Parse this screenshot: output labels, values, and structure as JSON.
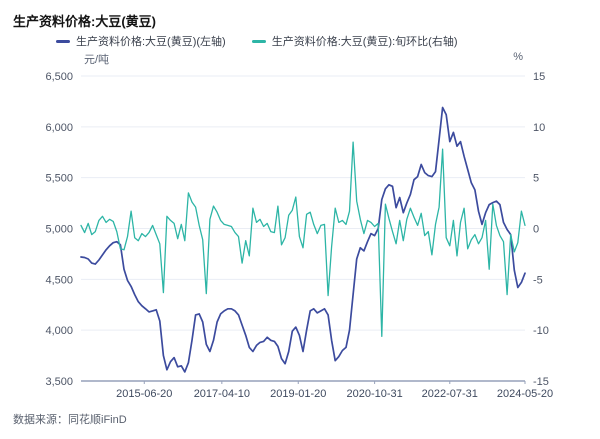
{
  "title": "生产资料价格:大豆(黄豆)",
  "source": "数据来源：同花顺iFinD",
  "chart_data": {
    "type": "line",
    "title": "生产资料价格:大豆(黄豆)",
    "grid": true,
    "legend_position": "top",
    "left_axis": {
      "label": "元/吨",
      "min": 3500,
      "max": 6500,
      "tick_labels": [
        "6,500",
        "6,000",
        "5,500",
        "5,000",
        "4,500",
        "4,000",
        "3,500"
      ]
    },
    "right_axis": {
      "label": "%",
      "min": -15,
      "max": 15,
      "tick_labels": [
        "15",
        "10",
        "5",
        "0",
        "-5",
        "-10",
        "-15"
      ]
    },
    "x_tick_labels": [
      "2015-06-20",
      "2017-04-10",
      "2019-01-20",
      "2020-10-31",
      "2022-07-31",
      "2024-05-20"
    ],
    "x_tick_positions": [
      0.1425,
      0.3172,
      0.4893,
      0.6613,
      0.8306,
      1.0
    ],
    "x": [
      "2014-01",
      "2014-02",
      "2014-03",
      "2014-04",
      "2014-05",
      "2014-06",
      "2014-07",
      "2014-08",
      "2014-09",
      "2014-10",
      "2014-11",
      "2014-12",
      "2015-01",
      "2015-02",
      "2015-03",
      "2015-04",
      "2015-05",
      "2015-06",
      "2015-07",
      "2015-08",
      "2015-09",
      "2015-10",
      "2015-11",
      "2015-12",
      "2016-01",
      "2016-02",
      "2016-03",
      "2016-04",
      "2016-05",
      "2016-06",
      "2016-07",
      "2016-08",
      "2016-09",
      "2016-10",
      "2016-11",
      "2016-12",
      "2017-01",
      "2017-02",
      "2017-03",
      "2017-04",
      "2017-05",
      "2017-06",
      "2017-07",
      "2017-08",
      "2017-09",
      "2017-10",
      "2017-11",
      "2017-12",
      "2018-01",
      "2018-02",
      "2018-03",
      "2018-04",
      "2018-05",
      "2018-06",
      "2018-07",
      "2018-08",
      "2018-09",
      "2018-10",
      "2018-11",
      "2018-12",
      "2019-01",
      "2019-02",
      "2019-03",
      "2019-04",
      "2019-05",
      "2019-06",
      "2019-07",
      "2019-08",
      "2019-09",
      "2019-10",
      "2019-11",
      "2019-12",
      "2020-01",
      "2020-02",
      "2020-03",
      "2020-04",
      "2020-05",
      "2020-06",
      "2020-07",
      "2020-08",
      "2020-09",
      "2020-10",
      "2020-11",
      "2020-12",
      "2021-01",
      "2021-02",
      "2021-03",
      "2021-04",
      "2021-05",
      "2021-06",
      "2021-07",
      "2021-08",
      "2021-09",
      "2021-10",
      "2021-11",
      "2021-12",
      "2022-01",
      "2022-02",
      "2022-03",
      "2022-04",
      "2022-05",
      "2022-06",
      "2022-07",
      "2022-08",
      "2022-09",
      "2022-10",
      "2022-11",
      "2022-12",
      "2023-01",
      "2023-02",
      "2023-03",
      "2023-04",
      "2023-05",
      "2023-06",
      "2023-07",
      "2023-08",
      "2023-09",
      "2023-10",
      "2023-11",
      "2023-12",
      "2024-01",
      "2024-02",
      "2024-03",
      "2024-04",
      "2024-05"
    ],
    "series": [
      {
        "name": "生产资料价格:大豆(黄豆)(左轴)",
        "axis": "left",
        "color": "#3C4B9E",
        "values": [
          4720,
          4715,
          4700,
          4660,
          4650,
          4690,
          4740,
          4790,
          4830,
          4860,
          4870,
          4840,
          4600,
          4490,
          4430,
          4350,
          4280,
          4240,
          4210,
          4180,
          4190,
          4200,
          4090,
          3750,
          3610,
          3690,
          3730,
          3640,
          3650,
          3590,
          3680,
          3900,
          4150,
          4160,
          4080,
          3860,
          3790,
          3900,
          4080,
          4160,
          4190,
          4210,
          4210,
          4190,
          4150,
          4050,
          3950,
          3830,
          3790,
          3850,
          3880,
          3890,
          3930,
          3900,
          3890,
          3840,
          3720,
          3670,
          3790,
          3990,
          4030,
          3950,
          3790,
          4000,
          4190,
          4210,
          4170,
          4190,
          4210,
          4150,
          3900,
          3700,
          3740,
          3800,
          3830,
          4000,
          4350,
          4700,
          4810,
          4780,
          4870,
          4950,
          4930,
          5000,
          5285,
          5390,
          5430,
          5415,
          5205,
          5305,
          5155,
          5250,
          5335,
          5480,
          5510,
          5630,
          5550,
          5520,
          5510,
          5560,
          5875,
          6190,
          6120,
          5855,
          5945,
          5810,
          5855,
          5710,
          5580,
          5450,
          5380,
          5170,
          5040,
          5155,
          5235,
          5255,
          5270,
          5235,
          5060,
          4990,
          4940,
          4590,
          4420,
          4470,
          4560
        ]
      },
      {
        "name": "生产资料价格:大豆(黄豆):旬环比(右轴)",
        "axis": "right",
        "color": "#2DB5A6",
        "values": [
          0.3,
          -0.4,
          0.5,
          -0.6,
          -0.3,
          0.8,
          1.2,
          0.6,
          0.9,
          0.7,
          -0.3,
          -2.0,
          -2.1,
          -0.8,
          1.7,
          -0.9,
          -1.2,
          -0.5,
          -0.8,
          -0.4,
          0.3,
          -0.6,
          -1.5,
          -6.3,
          1.2,
          0.8,
          0.5,
          -1.0,
          0.4,
          -1.2,
          3.5,
          2.6,
          2.1,
          0.3,
          -1.1,
          -6.4,
          0.9,
          2.2,
          1.6,
          0.8,
          0.4,
          0.3,
          0.2,
          -0.4,
          -0.8,
          -3.4,
          -1.2,
          -2.7,
          2.0,
          0.6,
          0.9,
          0.2,
          0.5,
          -0.3,
          -0.4,
          2.2,
          -1.6,
          -0.9,
          1.3,
          1.8,
          3.1,
          -0.8,
          -1.9,
          1.4,
          1.6,
          0.4,
          -0.5,
          0.3,
          0.4,
          -6.6,
          -1.8,
          2.0,
          0.6,
          0.8,
          0.4,
          1.7,
          8.5,
          2.7,
          0.9,
          -0.5,
          0.8,
          0.6,
          0.2,
          0.5,
          -10.6,
          2.4,
          1.0,
          -0.3,
          -1.5,
          0.8,
          -1.2,
          0.9,
          2.0,
          1.1,
          0.3,
          1.5,
          -0.7,
          -0.3,
          -2.6,
          0.4,
          2.1,
          7.8,
          -0.9,
          -1.7,
          0.8,
          -2.7,
          0.6,
          2.0,
          -2.0,
          -1.1,
          -0.6,
          -1.5,
          -0.9,
          0.8,
          -4.0,
          2.4,
          0.3,
          -0.7,
          -1.3,
          -6.5,
          -0.6,
          -2.3,
          -1.4,
          1.7,
          0.3
        ]
      }
    ]
  }
}
